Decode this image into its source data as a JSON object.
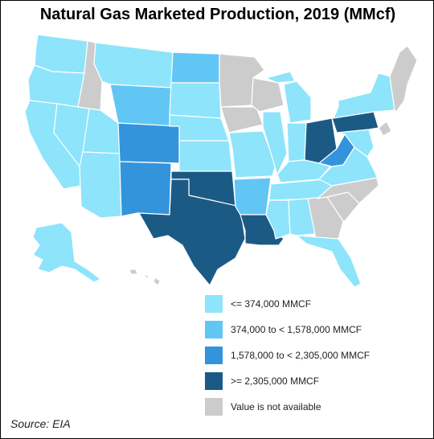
{
  "title": "Natural Gas Marketed Production, 2019 (MMcf)",
  "source": "Source: EIA",
  "colors": {
    "level1": "#8ee4fa",
    "level2": "#62c6f5",
    "level3": "#3394dc",
    "level4": "#1c5a86",
    "na": "#cccccc",
    "border": "#ffffff"
  },
  "legend": [
    {
      "label": "<= 374,000 MMCF",
      "class": "level1"
    },
    {
      "label": "374,000 to < 1,578,000 MMCF",
      "class": "level2"
    },
    {
      "label": "1,578,000 to < 2,305,000 MMCF",
      "class": "level3"
    },
    {
      "label": ">= 2,305,000 MMCF",
      "class": "level4"
    },
    {
      "label": "Value is not available",
      "class": "na"
    }
  ],
  "states": {
    "WA": "level1",
    "OR": "level1",
    "CA": "level1",
    "NV": "level1",
    "ID": "na",
    "MT": "level1",
    "WY": "level2",
    "UT": "level1",
    "AZ": "level1",
    "CO": "level3",
    "NM": "level3",
    "ND": "level2",
    "SD": "level1",
    "NE": "level1",
    "KS": "level1",
    "OK": "level4",
    "TX": "level4",
    "MN": "na",
    "IA": "na",
    "MO": "level1",
    "AR": "level2",
    "LA": "level4",
    "WI": "na",
    "IL": "level1",
    "MI": "level1",
    "IN": "level1",
    "OH": "level4",
    "KY": "level1",
    "TN": "level1",
    "MS": "level1",
    "AL": "level1",
    "GA": "na",
    "FL": "level1",
    "SC": "na",
    "NC": "na",
    "VA": "level1",
    "WV": "level3",
    "PA": "level4",
    "NY": "level1",
    "MD": "level1",
    "NE_states": "na",
    "AK": "level1",
    "HI": "na"
  }
}
